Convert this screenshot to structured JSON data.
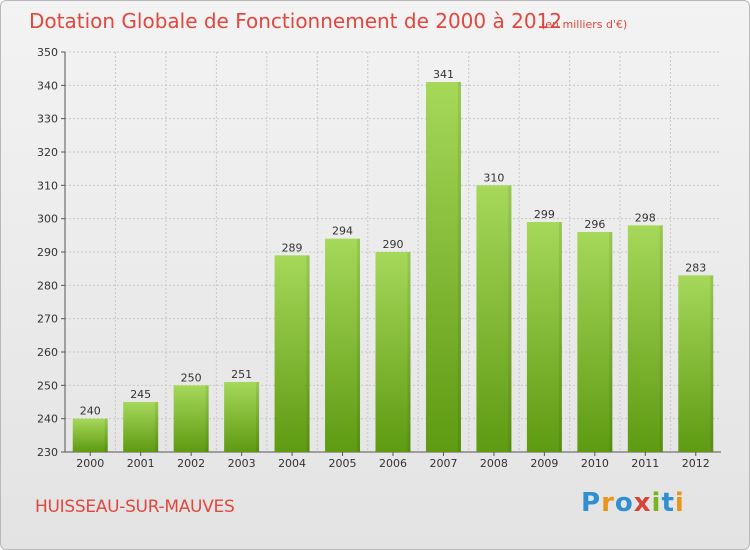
{
  "chart_data": {
    "type": "bar",
    "title": "Dotation Globale de Fonctionnement de 2000 à 2012",
    "subtitle": "(en milliers d'€)",
    "categories": [
      "2000",
      "2001",
      "2002",
      "2003",
      "2004",
      "2005",
      "2006",
      "2007",
      "2008",
      "2009",
      "2010",
      "2011",
      "2012"
    ],
    "values": [
      240,
      245,
      250,
      251,
      289,
      294,
      290,
      341,
      310,
      299,
      296,
      298,
      283
    ],
    "ylim": [
      230,
      350
    ],
    "yticks": [
      230,
      240,
      250,
      260,
      270,
      280,
      290,
      300,
      310,
      320,
      330,
      340,
      350
    ],
    "grid": true,
    "bar_color": "#7ab41e",
    "xlabel": "",
    "ylabel": ""
  },
  "footer": {
    "town": "HUISSEAU-SUR-MAUVES",
    "brand": "Proxiti"
  },
  "colors": {
    "title": "#e0473e",
    "bar_top": "#a6d85a",
    "bar_bottom": "#5e9a12",
    "grid": "#c8c8c8"
  }
}
